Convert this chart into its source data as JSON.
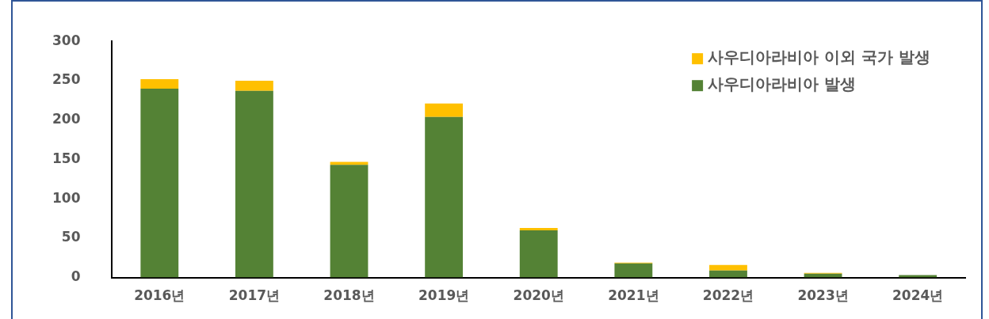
{
  "chart_data": {
    "type": "bar",
    "stacked": true,
    "categories": [
      "2016년",
      "2017년",
      "2018년",
      "2019년",
      "2020년",
      "2021년",
      "2022년",
      "2023년",
      "2024년"
    ],
    "series": [
      {
        "name": "사우디아라비아 발생",
        "color": "#548235",
        "values": [
          240,
          237,
          143,
          204,
          60,
          18,
          9,
          5,
          3
        ]
      },
      {
        "name": "사우디아라비아 이외 국가 발생",
        "color": "#ffc000",
        "values": [
          12,
          13,
          4,
          17,
          3,
          1,
          7,
          1,
          0
        ]
      }
    ],
    "ylim": [
      0,
      300
    ],
    "yticks": [
      0,
      50,
      100,
      150,
      200,
      250,
      300
    ],
    "grid": false,
    "legend": "top right"
  }
}
